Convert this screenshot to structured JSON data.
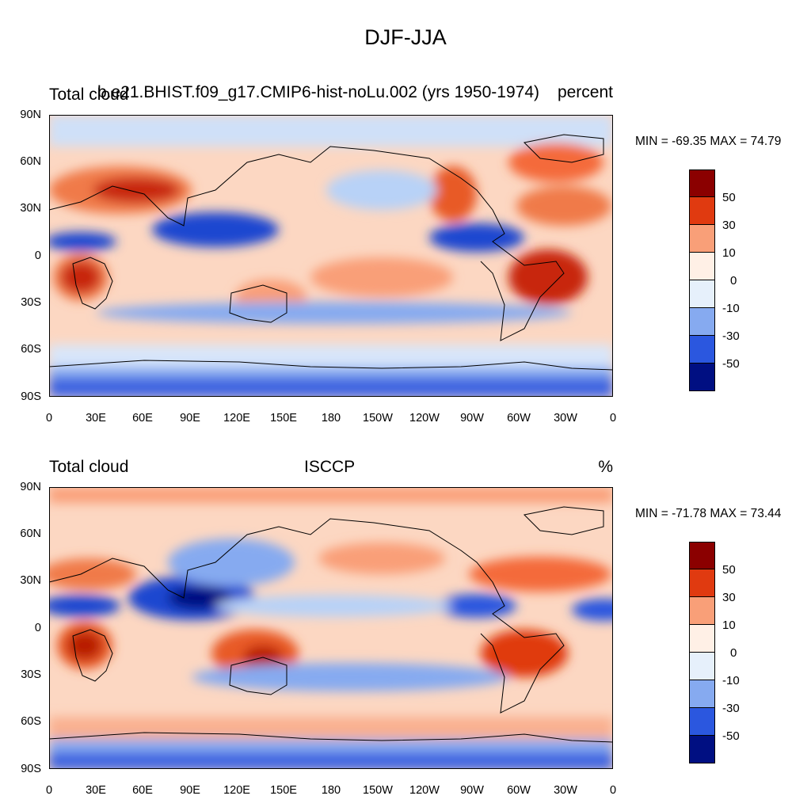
{
  "figure": {
    "title": "DJF-JJA"
  },
  "panels": [
    {
      "left_label": "Total cloud",
      "center_label": "b.e21.BHIST.f09_g17.CMIP6-hist-noLu.002 (yrs 1950-1974)",
      "right_label": "percent",
      "minmax": "MIN = -69.35 MAX =  74.79"
    },
    {
      "left_label": "Total cloud",
      "center_label": "ISCCP",
      "right_label": "%",
      "minmax": "MIN = -71.78 MAX =  73.44"
    }
  ],
  "axes": {
    "lat_ticks": [
      "90N",
      "60N",
      "30N",
      "0",
      "30S",
      "60S",
      "90S"
    ],
    "lon_ticks": [
      "0",
      "30E",
      "60E",
      "90E",
      "120E",
      "150E",
      "180",
      "150W",
      "120W",
      "90W",
      "60W",
      "30W",
      "0"
    ]
  },
  "colorbar": {
    "labels": [
      "50",
      "30",
      "10",
      "0",
      "-10",
      "-30",
      "-50"
    ],
    "colors": [
      "#8b0000",
      "#b81c00",
      "#e03a10",
      "#f46a3a",
      "#f99f78",
      "#fcccb0",
      "#fff0e6",
      "#e6f0fb",
      "#b8d2f7",
      "#86aaf0",
      "#5584ea",
      "#2b57df",
      "#1034c0",
      "#000f82"
    ]
  }
}
